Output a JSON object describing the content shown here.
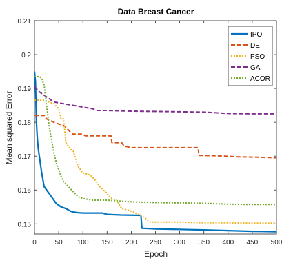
{
  "chart_data": {
    "type": "line",
    "title": "Data Breast Cancer",
    "xlabel": "Epoch",
    "ylabel": "Mean squared Error",
    "xlim": [
      0,
      500
    ],
    "ylim": [
      0.147,
      0.21
    ],
    "x_ticks": [
      0,
      50,
      100,
      150,
      200,
      250,
      300,
      350,
      400,
      450,
      500
    ],
    "y_ticks": [
      0.15,
      0.16,
      0.17,
      0.18,
      0.19,
      0.2,
      0.21
    ],
    "grid": false,
    "legend_position": "top-right",
    "series": [
      {
        "name": "IPO",
        "color": "#0072bd",
        "style": "solid",
        "points": [
          [
            0,
            0.195
          ],
          [
            2,
            0.192
          ],
          [
            4,
            0.18
          ],
          [
            6,
            0.175
          ],
          [
            8,
            0.172
          ],
          [
            10,
            0.17
          ],
          [
            12,
            0.168
          ],
          [
            15,
            0.165
          ],
          [
            20,
            0.161
          ],
          [
            25,
            0.16
          ],
          [
            30,
            0.159
          ],
          [
            35,
            0.158
          ],
          [
            40,
            0.157
          ],
          [
            45,
            0.156
          ],
          [
            50,
            0.1555
          ],
          [
            55,
            0.155
          ],
          [
            65,
            0.1545
          ],
          [
            75,
            0.1537
          ],
          [
            80,
            0.1535
          ],
          [
            90,
            0.1533
          ],
          [
            100,
            0.1532
          ],
          [
            140,
            0.1532
          ],
          [
            150,
            0.1528
          ],
          [
            180,
            0.1526
          ],
          [
            220,
            0.1525
          ],
          [
            222,
            0.1487
          ],
          [
            250,
            0.1485
          ],
          [
            350,
            0.1482
          ],
          [
            400,
            0.148
          ],
          [
            450,
            0.1478
          ],
          [
            500,
            0.1477
          ]
        ]
      },
      {
        "name": "DE",
        "color": "#d95319",
        "style": "dashed",
        "points": [
          [
            0,
            0.182
          ],
          [
            20,
            0.182
          ],
          [
            25,
            0.181
          ],
          [
            40,
            0.18
          ],
          [
            60,
            0.179
          ],
          [
            65,
            0.1785
          ],
          [
            75,
            0.177
          ],
          [
            80,
            0.1765
          ],
          [
            100,
            0.1765
          ],
          [
            105,
            0.176
          ],
          [
            140,
            0.176
          ],
          [
            158,
            0.176
          ],
          [
            160,
            0.174
          ],
          [
            180,
            0.174
          ],
          [
            185,
            0.173
          ],
          [
            200,
            0.1725
          ],
          [
            225,
            0.1725
          ],
          [
            260,
            0.1725
          ],
          [
            300,
            0.1725
          ],
          [
            338,
            0.1725
          ],
          [
            340,
            0.1702
          ],
          [
            380,
            0.1701
          ],
          [
            420,
            0.1698
          ],
          [
            460,
            0.1697
          ],
          [
            500,
            0.1695
          ]
        ]
      },
      {
        "name": "PSO",
        "color": "#edb120",
        "style": "dotted",
        "points": [
          [
            0,
            0.1865
          ],
          [
            20,
            0.1865
          ],
          [
            30,
            0.186
          ],
          [
            40,
            0.1855
          ],
          [
            50,
            0.184
          ],
          [
            55,
            0.181
          ],
          [
            60,
            0.181
          ],
          [
            65,
            0.174
          ],
          [
            70,
            0.173
          ],
          [
            75,
            0.172
          ],
          [
            80,
            0.1715
          ],
          [
            90,
            0.167
          ],
          [
            100,
            0.165
          ],
          [
            115,
            0.1645
          ],
          [
            125,
            0.163
          ],
          [
            135,
            0.161
          ],
          [
            150,
            0.159
          ],
          [
            155,
            0.158
          ],
          [
            160,
            0.1575
          ],
          [
            170,
            0.157
          ],
          [
            180,
            0.1545
          ],
          [
            195,
            0.154
          ],
          [
            205,
            0.1535
          ],
          [
            225,
            0.152
          ],
          [
            235,
            0.151
          ],
          [
            240,
            0.1505
          ],
          [
            300,
            0.1505
          ],
          [
            350,
            0.1503
          ],
          [
            400,
            0.1503
          ],
          [
            450,
            0.1502
          ],
          [
            500,
            0.1502
          ]
        ]
      },
      {
        "name": "GA",
        "color": "#7e2f8e",
        "style": "dashed",
        "points": [
          [
            0,
            0.1905
          ],
          [
            10,
            0.189
          ],
          [
            20,
            0.188
          ],
          [
            30,
            0.187
          ],
          [
            40,
            0.186
          ],
          [
            60,
            0.1855
          ],
          [
            80,
            0.185
          ],
          [
            100,
            0.1845
          ],
          [
            120,
            0.184
          ],
          [
            130,
            0.1835
          ],
          [
            150,
            0.1835
          ],
          [
            200,
            0.1833
          ],
          [
            250,
            0.1832
          ],
          [
            300,
            0.1831
          ],
          [
            350,
            0.183
          ],
          [
            400,
            0.1826
          ],
          [
            450,
            0.1825
          ],
          [
            500,
            0.1825
          ]
        ]
      },
      {
        "name": "ACOR",
        "color": "#77ac30",
        "style": "dotted",
        "points": [
          [
            0,
            0.1935
          ],
          [
            10,
            0.1935
          ],
          [
            15,
            0.193
          ],
          [
            20,
            0.191
          ],
          [
            25,
            0.185
          ],
          [
            30,
            0.179
          ],
          [
            35,
            0.175
          ],
          [
            40,
            0.171
          ],
          [
            45,
            0.168
          ],
          [
            50,
            0.166
          ],
          [
            55,
            0.164
          ],
          [
            60,
            0.1625
          ],
          [
            70,
            0.161
          ],
          [
            80,
            0.1595
          ],
          [
            90,
            0.158
          ],
          [
            100,
            0.1575
          ],
          [
            120,
            0.157
          ],
          [
            150,
            0.157
          ],
          [
            200,
            0.1565
          ],
          [
            250,
            0.1563
          ],
          [
            300,
            0.1562
          ],
          [
            350,
            0.1561
          ],
          [
            400,
            0.1558
          ],
          [
            450,
            0.1557
          ],
          [
            500,
            0.1557
          ]
        ]
      }
    ]
  }
}
